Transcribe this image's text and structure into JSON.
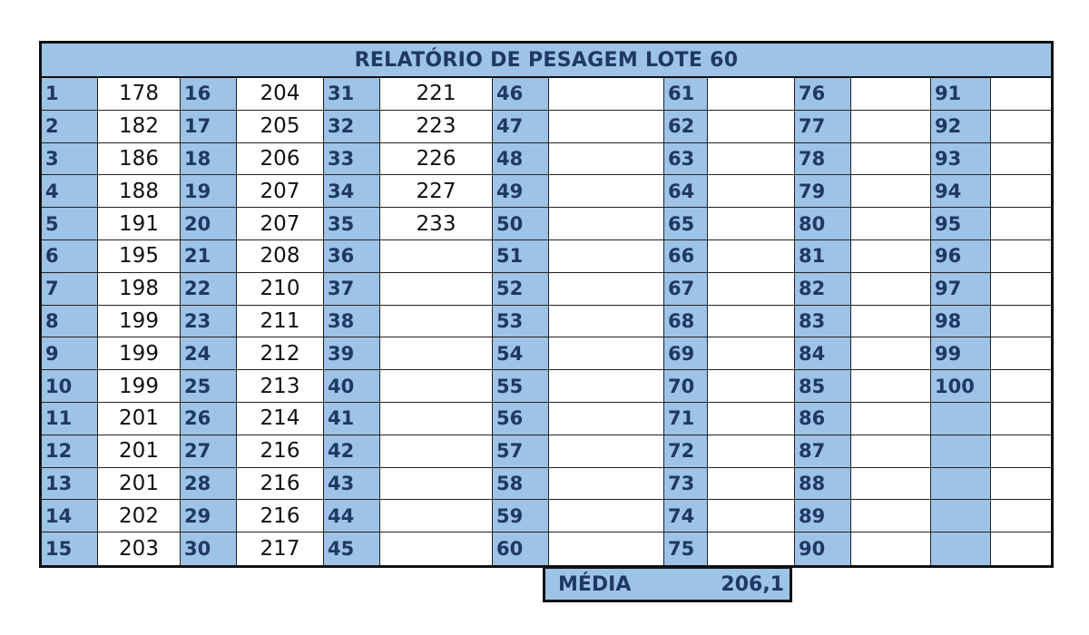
{
  "report": {
    "title": "RELATÓRIO DE PESAGEM LOTE 60",
    "columns": [
      {
        "start": 1,
        "weights": [
          "178",
          "182",
          "186",
          "188",
          "191",
          "195",
          "198",
          "199",
          "199",
          "199",
          "201",
          "201",
          "201",
          "202",
          "203"
        ]
      },
      {
        "start": 16,
        "weights": [
          "204",
          "205",
          "206",
          "207",
          "207",
          "208",
          "210",
          "211",
          "212",
          "213",
          "214",
          "216",
          "216",
          "216",
          "217"
        ]
      },
      {
        "start": 31,
        "weights": [
          "221",
          "223",
          "226",
          "227",
          "233",
          "",
          "",
          "",
          "",
          "",
          "",
          "",
          "",
          "",
          ""
        ]
      },
      {
        "start": 46,
        "weights": [
          "",
          "",
          "",
          "",
          "",
          "",
          "",
          "",
          "",
          "",
          "",
          "",
          "",
          "",
          ""
        ]
      },
      {
        "start": 61,
        "weights": [
          "",
          "",
          "",
          "",
          "",
          "",
          "",
          "",
          "",
          "",
          "",
          "",
          "",
          "",
          ""
        ]
      },
      {
        "start": 76,
        "weights": [
          "",
          "",
          "",
          "",
          "",
          "",
          "",
          "",
          "",
          "",
          "",
          "",
          "",
          "",
          ""
        ]
      },
      {
        "start": 91,
        "weights": [
          "",
          "",
          "",
          "",
          "",
          "",
          "",
          "",
          "",
          "",
          "",
          "",
          "",
          "",
          ""
        ]
      }
    ],
    "media_label": "MÉDIA",
    "media_value": "206,1"
  }
}
